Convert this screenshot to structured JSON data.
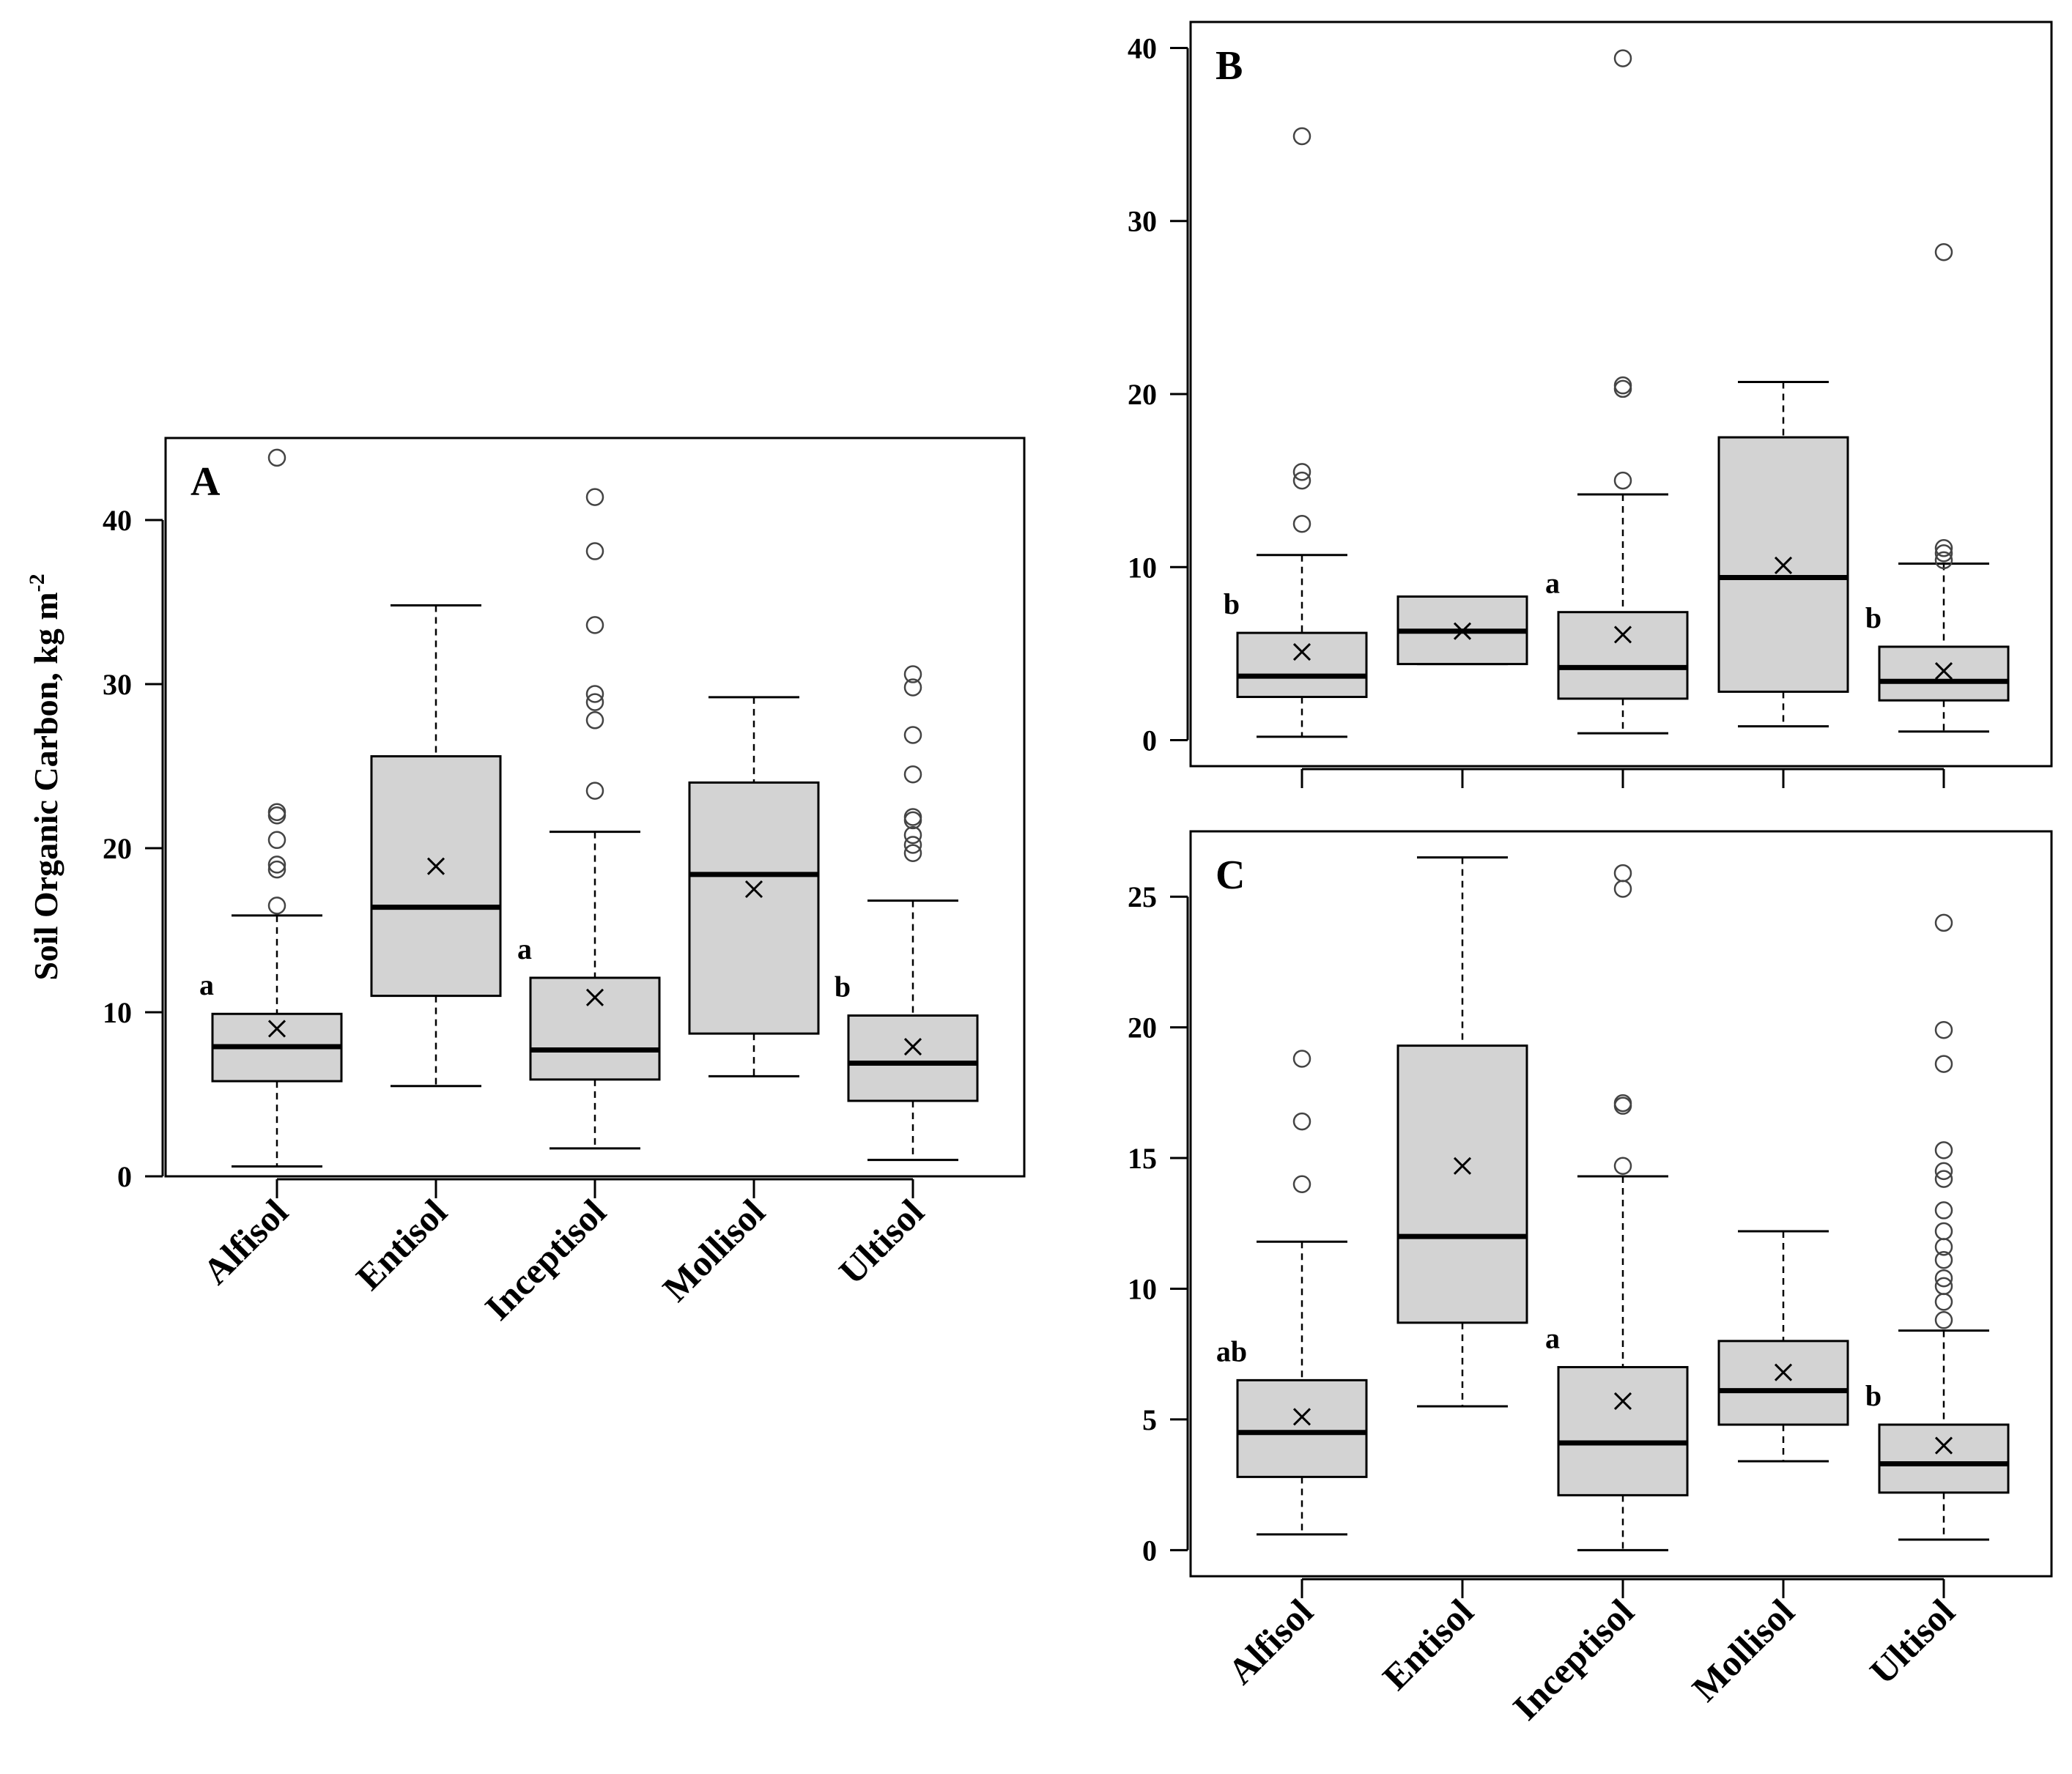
{
  "colors": {
    "box_fill": "#d3d3d3",
    "stroke": "#000000",
    "outlier": "#444444"
  },
  "ylabel": {
    "main": "Soil Organic Carbon, kg m",
    "superscript": "-2"
  },
  "chart_data": [
    {
      "panel": "A",
      "type": "boxplot",
      "title": "A",
      "ylabel": "Soil Organic Carbon, kg m-2",
      "ylim": [
        0,
        45
      ],
      "yticks": [
        "0",
        "10",
        "20",
        "30",
        "40"
      ],
      "show_xlabels": true,
      "categories": [
        "Alfisol",
        "Entisol",
        "Inceptisol",
        "Mollisol",
        "Ultisol"
      ],
      "boxes": [
        {
          "category": "Alfisol",
          "whisker_low": 0.6,
          "q1": 5.8,
          "median": 7.9,
          "q3": 9.9,
          "whisker_high": 15.9,
          "mean": 9.0,
          "outliers": [
            16.5,
            18.7,
            19.0,
            20.5,
            22.0,
            22.2,
            43.8
          ],
          "letter": "a"
        },
        {
          "category": "Entisol",
          "whisker_low": 5.5,
          "q1": 11.0,
          "median": 16.4,
          "q3": 25.6,
          "whisker_high": 34.8,
          "mean": 18.9,
          "outliers": [],
          "letter": ""
        },
        {
          "category": "Inceptisol",
          "whisker_low": 1.7,
          "q1": 5.9,
          "median": 7.7,
          "q3": 12.1,
          "whisker_high": 21.0,
          "mean": 10.9,
          "outliers": [
            23.5,
            27.8,
            28.9,
            29.4,
            33.6,
            38.1,
            41.4
          ],
          "letter": "a"
        },
        {
          "category": "Mollisol",
          "whisker_low": 6.1,
          "q1": 8.7,
          "median": 18.4,
          "q3": 24.0,
          "whisker_high": 29.2,
          "mean": 17.5,
          "outliers": [],
          "letter": ""
        },
        {
          "category": "Ultisol",
          "whisker_low": 1.0,
          "q1": 4.6,
          "median": 6.9,
          "q3": 9.8,
          "whisker_high": 16.8,
          "mean": 7.9,
          "outliers": [
            19.7,
            20.2,
            20.8,
            21.7,
            21.9,
            24.5,
            26.9,
            29.8,
            30.6
          ],
          "letter": "b"
        }
      ]
    },
    {
      "panel": "B",
      "type": "boxplot",
      "title": "B",
      "ylim": [
        -1.5,
        41.5
      ],
      "yticks": [
        "0",
        "10",
        "20",
        "30",
        "40"
      ],
      "show_xlabels": false,
      "categories": [
        "Alfisol",
        "Entisol",
        "Inceptisol",
        "Mollisol",
        "Ultisol"
      ],
      "boxes": [
        {
          "category": "Alfisol",
          "whisker_low": 0.2,
          "q1": 2.5,
          "median": 3.7,
          "q3": 6.2,
          "whisker_high": 10.7,
          "mean": 5.1,
          "outliers": [
            12.5,
            15.0,
            15.5,
            34.9
          ],
          "letter": "b"
        },
        {
          "category": "Entisol",
          "whisker_low": 4.4,
          "q1": 4.4,
          "median": 6.3,
          "q3": 8.3,
          "whisker_high": 8.3,
          "mean": 6.3,
          "outliers": [],
          "letter": ""
        },
        {
          "category": "Inceptisol",
          "whisker_low": 0.4,
          "q1": 2.4,
          "median": 4.2,
          "q3": 7.4,
          "whisker_high": 14.2,
          "mean": 6.1,
          "outliers": [
            15.0,
            20.3,
            20.5,
            39.4
          ],
          "letter": "a"
        },
        {
          "category": "Mollisol",
          "whisker_low": 0.8,
          "q1": 2.8,
          "median": 9.4,
          "q3": 17.5,
          "whisker_high": 20.7,
          "mean": 10.1,
          "outliers": [],
          "letter": ""
        },
        {
          "category": "Ultisol",
          "whisker_low": 0.5,
          "q1": 2.3,
          "median": 3.4,
          "q3": 5.4,
          "whisker_high": 10.2,
          "mean": 4.0,
          "outliers": [
            10.4,
            10.8,
            11.1,
            28.2
          ],
          "letter": "b"
        }
      ]
    },
    {
      "panel": "C",
      "type": "boxplot",
      "title": "C",
      "ylim": [
        -1,
        27.5
      ],
      "yticks": [
        "0",
        "5",
        "10",
        "15",
        "20",
        "25"
      ],
      "show_xlabels": true,
      "categories": [
        "Alfisol",
        "Entisol",
        "Inceptisol",
        "Mollisol",
        "Ultisol"
      ],
      "boxes": [
        {
          "category": "Alfisol",
          "whisker_low": 0.6,
          "q1": 2.8,
          "median": 4.5,
          "q3": 6.5,
          "whisker_high": 11.8,
          "mean": 5.1,
          "outliers": [
            14.0,
            16.4,
            18.8
          ],
          "letter": "ab"
        },
        {
          "category": "Entisol",
          "whisker_low": 5.5,
          "q1": 8.7,
          "median": 12.0,
          "q3": 19.3,
          "whisker_high": 26.5,
          "mean": 14.7,
          "outliers": [],
          "letter": ""
        },
        {
          "category": "Inceptisol",
          "whisker_low": 0.0,
          "q1": 2.1,
          "median": 4.1,
          "q3": 7.0,
          "whisker_high": 14.3,
          "mean": 5.7,
          "outliers": [
            14.7,
            17.0,
            17.1,
            25.3,
            25.9
          ],
          "letter": "a"
        },
        {
          "category": "Mollisol",
          "whisker_low": 3.4,
          "q1": 4.8,
          "median": 6.1,
          "q3": 8.0,
          "whisker_high": 12.2,
          "mean": 6.8,
          "outliers": [],
          "letter": ""
        },
        {
          "category": "Ultisol",
          "whisker_low": 0.4,
          "q1": 2.2,
          "median": 3.3,
          "q3": 4.8,
          "whisker_high": 8.4,
          "mean": 4.0,
          "outliers": [
            8.8,
            9.5,
            10.1,
            10.4,
            11.1,
            11.6,
            12.2,
            13.0,
            14.2,
            14.5,
            15.3,
            18.6,
            19.9,
            24.0
          ],
          "letter": "b"
        }
      ]
    }
  ]
}
